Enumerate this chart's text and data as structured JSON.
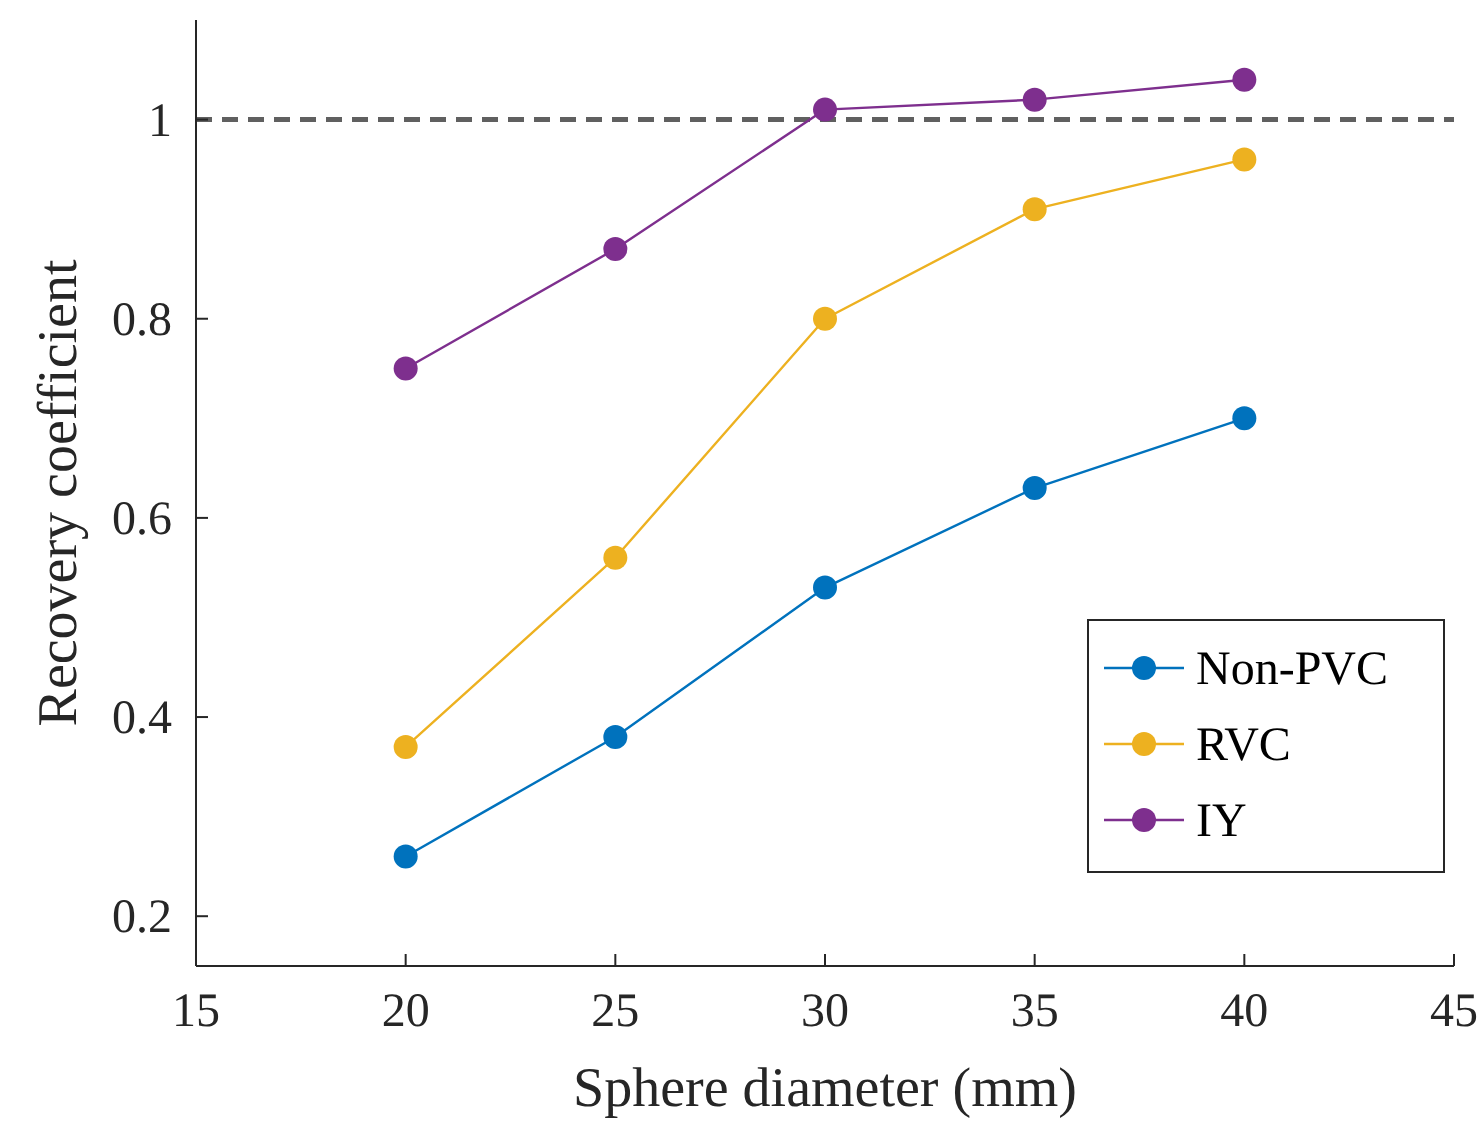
{
  "chart_data": {
    "type": "line",
    "xlabel": "Sphere diameter (mm)",
    "ylabel": "Recovery coefficient",
    "x": [
      20,
      25,
      30,
      35,
      40
    ],
    "series": [
      {
        "name": "Non-PVC",
        "color": "#0072bd",
        "values": [
          0.26,
          0.38,
          0.53,
          0.63,
          0.7
        ]
      },
      {
        "name": "RVC",
        "color": "#edb120",
        "values": [
          0.37,
          0.56,
          0.8,
          0.91,
          0.96
        ]
      },
      {
        "name": "IY",
        "color": "#7e2f8e",
        "values": [
          0.75,
          0.87,
          1.01,
          1.02,
          1.04
        ]
      }
    ],
    "xlim": [
      15,
      45
    ],
    "xticks": [
      15,
      20,
      25,
      30,
      35,
      40,
      45
    ],
    "ylim": [
      0.15,
      1.1
    ],
    "yticks": [
      0.2,
      0.4,
      0.6,
      0.8,
      1
    ],
    "ref_lines": [
      {
        "axis": "y",
        "value": 1,
        "color": "#606060",
        "line_style": "dashed"
      }
    ],
    "marker": "circle",
    "legend": "bottom right",
    "grid": false
  }
}
